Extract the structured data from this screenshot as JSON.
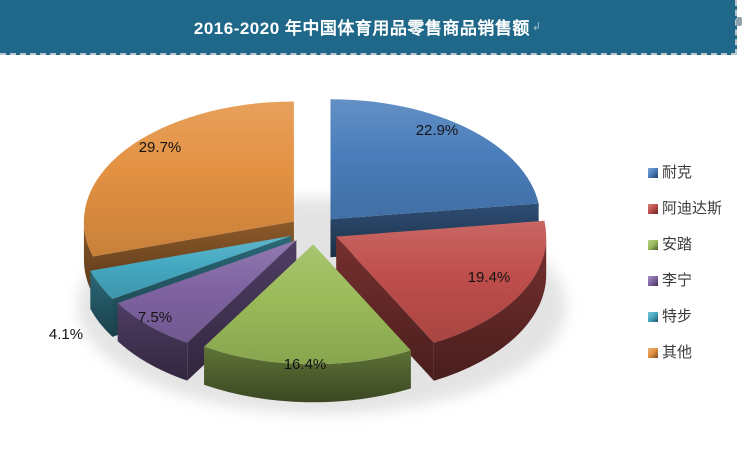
{
  "header": {
    "title": "2016-2020 年中国体育用品零售商品销售额",
    "background_color": "#1F6889",
    "text_color": "#FFFFFF"
  },
  "chart_data": {
    "type": "pie",
    "style": "3d-exploded",
    "title": "2016-2020 年中国体育用品零售商品销售额",
    "start_angle_deg": 0,
    "direction": "clockwise",
    "legend_position": "right",
    "label_format": "percent",
    "categories": [
      "耐克",
      "阿迪达斯",
      "安踏",
      "李宁",
      "特步",
      "其他"
    ],
    "values": [
      22.9,
      19.4,
      16.4,
      7.5,
      4.1,
      29.7
    ],
    "colors": [
      "#4A7EBB",
      "#BF4E4B",
      "#9ABB59",
      "#8064A2",
      "#45A9C2",
      "#E39142"
    ],
    "data_labels": [
      "22.9%",
      "19.4%",
      "16.4%",
      "7.5%",
      "4.1%",
      "29.7%"
    ]
  },
  "legend": {
    "items": [
      {
        "label": "耐克",
        "color": "#4A7EBB"
      },
      {
        "label": "阿迪达斯",
        "color": "#BF4E4B"
      },
      {
        "label": "安踏",
        "color": "#9ABB59"
      },
      {
        "label": "李宁",
        "color": "#8064A2"
      },
      {
        "label": "特步",
        "color": "#45A9C2"
      },
      {
        "label": "其他",
        "color": "#E39142"
      }
    ]
  }
}
